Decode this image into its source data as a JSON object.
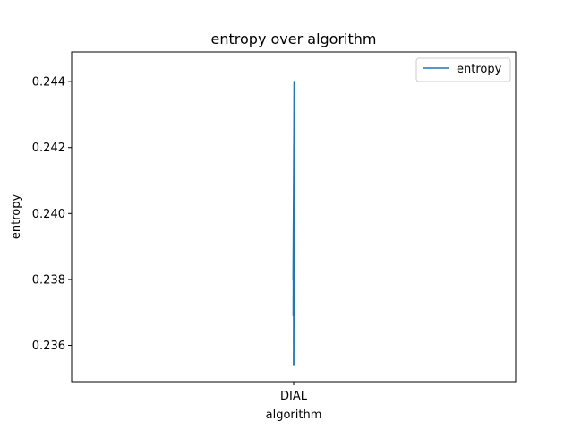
{
  "chart_data": {
    "type": "line",
    "title": "entropy over algorithm",
    "xlabel": "algorithm",
    "ylabel": "entropy",
    "categories": [
      "DIAL"
    ],
    "x_ticks": [
      "DIAL"
    ],
    "y_ticks": [
      "0.236",
      "0.238",
      "0.240",
      "0.242",
      "0.244"
    ],
    "ylim": [
      0.2349,
      0.2449
    ],
    "series": [
      {
        "name": "entropy",
        "color": "#1f77b4",
        "x": [
          "DIAL",
          "DIAL",
          "DIAL",
          "DIAL",
          "DIAL",
          "DIAL"
        ],
        "values": [
          0.2354,
          0.244,
          0.2369,
          0.2428,
          0.238,
          0.2421
        ]
      }
    ],
    "legend": {
      "position": "top-right",
      "entries": [
        "entropy"
      ]
    },
    "grid": false
  }
}
